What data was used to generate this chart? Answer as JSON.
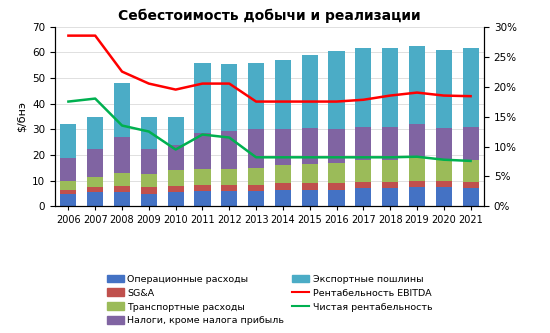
{
  "title": "Себестоимость добычи и реализации",
  "ylabel_left": "$/бнэ",
  "years": [
    2006,
    2007,
    2008,
    2009,
    2010,
    2011,
    2012,
    2013,
    2014,
    2015,
    2016,
    2017,
    2018,
    2019,
    2020,
    2021
  ],
  "bar_data": {
    "opex": [
      5.0,
      5.5,
      5.5,
      5.0,
      5.5,
      6.0,
      6.0,
      6.0,
      6.5,
      6.5,
      6.5,
      7.0,
      7.0,
      7.5,
      7.5,
      7.0
    ],
    "sga": [
      1.5,
      2.0,
      2.5,
      2.5,
      2.5,
      2.5,
      2.5,
      2.5,
      2.5,
      2.5,
      2.5,
      2.5,
      2.5,
      2.5,
      2.5,
      2.5
    ],
    "transport": [
      3.5,
      4.0,
      5.0,
      5.0,
      6.0,
      6.0,
      6.0,
      6.5,
      7.0,
      7.5,
      8.0,
      8.5,
      8.5,
      9.0,
      8.5,
      8.5
    ],
    "taxes": [
      9.0,
      11.0,
      14.0,
      10.0,
      10.0,
      14.0,
      15.0,
      15.0,
      14.0,
      14.0,
      13.0,
      13.0,
      13.0,
      13.0,
      12.0,
      13.0
    ],
    "export": [
      13.0,
      12.5,
      21.0,
      12.5,
      11.0,
      27.5,
      26.0,
      26.0,
      27.0,
      28.5,
      30.5,
      30.5,
      30.5,
      30.5,
      30.5,
      30.5
    ]
  },
  "line_data": {
    "ebitda_margin": [
      0.285,
      0.285,
      0.225,
      0.205,
      0.195,
      0.205,
      0.205,
      0.175,
      0.175,
      0.175,
      0.175,
      0.178,
      0.185,
      0.19,
      0.185,
      0.184
    ],
    "net_margin": [
      0.175,
      0.18,
      0.135,
      0.125,
      0.095,
      0.12,
      0.115,
      0.082,
      0.082,
      0.082,
      0.082,
      0.082,
      0.082,
      0.083,
      0.078,
      0.076
    ]
  },
  "colors": {
    "opex": "#4472C4",
    "sga": "#C0504D",
    "transport": "#9BBB59",
    "taxes": "#8064A2",
    "export": "#4BACC6",
    "ebitda": "#FF0000",
    "net": "#00B050"
  },
  "legend_labels": {
    "opex": "Операционные расходы",
    "sga": "SG&A",
    "transport": "Транспортные расходы",
    "taxes": "Налоги, кроме налога прибыль",
    "export": "Экспортные пошлины",
    "ebitda": "Рентабельность EBITDA",
    "net": "Чистая рентабельность"
  },
  "ylim_left": [
    0,
    70
  ],
  "ylim_right": [
    0.0,
    0.3
  ],
  "yticks_left": [
    0,
    10,
    20,
    30,
    40,
    50,
    60,
    70
  ],
  "yticks_right": [
    0.0,
    0.05,
    0.1,
    0.15,
    0.2,
    0.25,
    0.3
  ],
  "ytick_labels_right": [
    "0%",
    "5%",
    "10%",
    "15%",
    "20%",
    "25%",
    "30%"
  ],
  "figsize": [
    5.5,
    3.33
  ],
  "dpi": 100
}
